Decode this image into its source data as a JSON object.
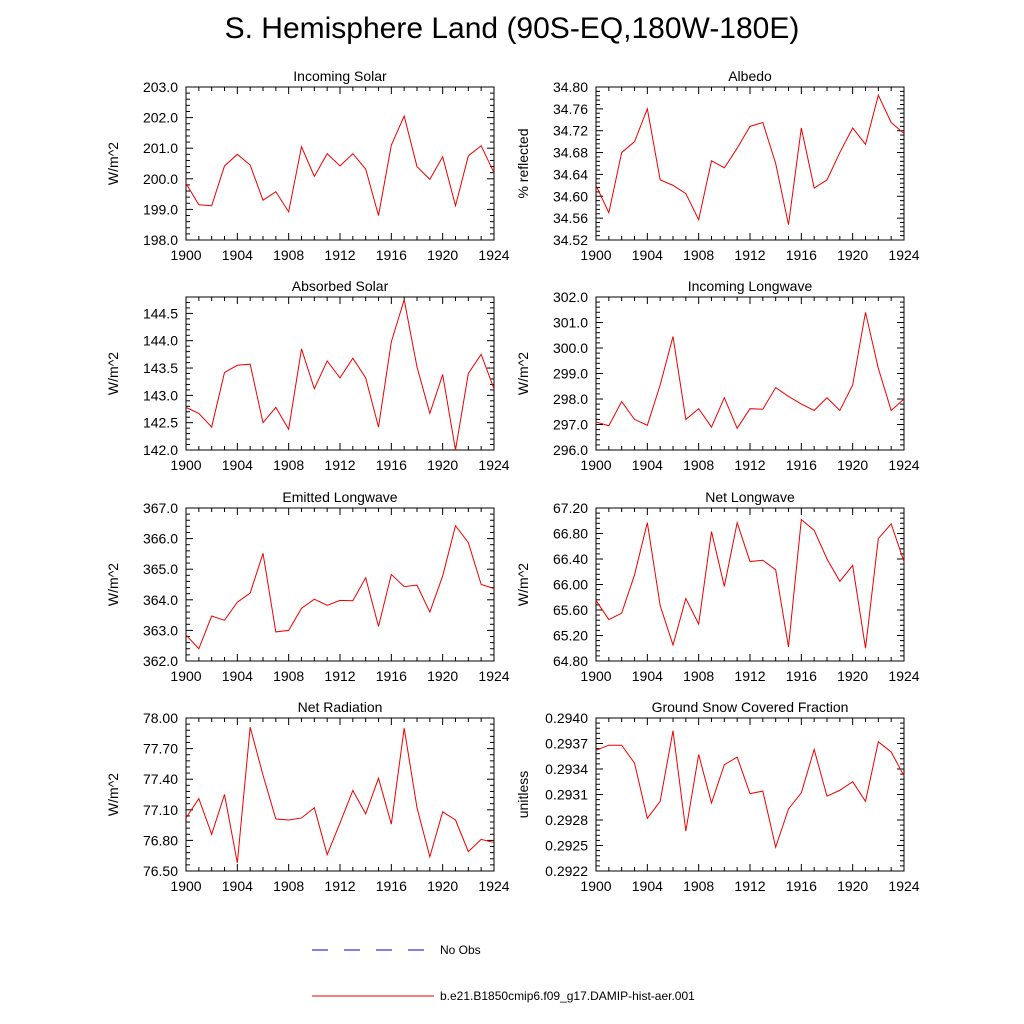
{
  "title": "S. Hemisphere Land (90S-EQ,180W-180E)",
  "legend": [
    {
      "label": "No Obs",
      "color": "#0000cc",
      "style": "dashed"
    },
    {
      "label": "b.e21.B1850cmip6.f09_g17.DAMIP-hist-aer.001",
      "color": "#ee0000",
      "style": "solid"
    }
  ],
  "chart_data": [
    {
      "type": "line",
      "title": "Incoming Solar",
      "ylabel": "W/m^2",
      "xlim": [
        1900,
        1924
      ],
      "ylim": [
        198.0,
        203.0
      ],
      "xticks": [
        "1900",
        "1904",
        "1908",
        "1912",
        "1916",
        "1920",
        "1924"
      ],
      "yticks": [
        "198.0",
        "199.0",
        "200.0",
        "201.0",
        "202.0",
        "203.0"
      ],
      "x": [
        1900,
        1901,
        1902,
        1903,
        1904,
        1905,
        1906,
        1907,
        1908,
        1909,
        1910,
        1911,
        1912,
        1913,
        1914,
        1915,
        1916,
        1917,
        1918,
        1919,
        1920,
        1921,
        1922,
        1923,
        1924
      ],
      "series": [
        {
          "color": "#ee0000",
          "values": [
            199.85,
            199.15,
            199.12,
            200.42,
            200.8,
            200.45,
            199.3,
            199.58,
            198.92,
            201.05,
            200.08,
            200.82,
            200.42,
            200.82,
            200.32,
            198.8,
            201.1,
            202.05,
            200.4,
            199.98,
            200.72,
            199.12,
            200.75,
            201.08,
            200.2
          ]
        }
      ]
    },
    {
      "type": "line",
      "title": "Albedo",
      "ylabel": "% reflected",
      "xlim": [
        1900,
        1924
      ],
      "ylim": [
        34.52,
        34.8
      ],
      "xticks": [
        "1900",
        "1904",
        "1908",
        "1912",
        "1916",
        "1920",
        "1924"
      ],
      "yticks": [
        "34.52",
        "34.56",
        "34.60",
        "34.64",
        "34.68",
        "34.72",
        "34.76",
        "34.80"
      ],
      "x": [
        1900,
        1901,
        1902,
        1903,
        1904,
        1905,
        1906,
        1907,
        1908,
        1909,
        1910,
        1911,
        1912,
        1913,
        1914,
        1915,
        1916,
        1917,
        1918,
        1919,
        1920,
        1921,
        1922,
        1923,
        1924
      ],
      "series": [
        {
          "color": "#ee0000",
          "values": [
            34.62,
            34.57,
            34.68,
            34.7,
            34.76,
            34.63,
            34.62,
            34.605,
            34.557,
            34.665,
            34.652,
            34.688,
            34.728,
            34.735,
            34.66,
            34.548,
            34.725,
            34.615,
            34.63,
            34.68,
            34.725,
            34.695,
            34.785,
            34.735,
            34.715
          ]
        }
      ]
    },
    {
      "type": "line",
      "title": "Absorbed Solar",
      "ylabel": "W/m^2",
      "xlim": [
        1900,
        1924
      ],
      "ylim": [
        142.0,
        144.8
      ],
      "xticks": [
        "1900",
        "1904",
        "1908",
        "1912",
        "1916",
        "1920",
        "1924"
      ],
      "yticks": [
        "142.0",
        "142.5",
        "143.0",
        "143.5",
        "144.0",
        "144.5"
      ],
      "x": [
        1900,
        1901,
        1902,
        1903,
        1904,
        1905,
        1906,
        1907,
        1908,
        1909,
        1910,
        1911,
        1912,
        1913,
        1914,
        1915,
        1916,
        1917,
        1918,
        1919,
        1920,
        1921,
        1922,
        1923,
        1924
      ],
      "series": [
        {
          "color": "#ee0000",
          "values": [
            142.78,
            142.67,
            142.42,
            143.42,
            143.55,
            143.57,
            142.5,
            142.78,
            142.38,
            143.85,
            143.12,
            143.63,
            143.32,
            143.68,
            143.32,
            142.42,
            143.98,
            144.75,
            143.52,
            142.67,
            143.38,
            142.0,
            143.4,
            143.75,
            143.12
          ]
        }
      ]
    },
    {
      "type": "line",
      "title": "Incoming Longwave",
      "ylabel": "W/m^2",
      "xlim": [
        1900,
        1924
      ],
      "ylim": [
        296.0,
        302.0
      ],
      "xticks": [
        "1900",
        "1904",
        "1908",
        "1912",
        "1916",
        "1920",
        "1924"
      ],
      "yticks": [
        "296.0",
        "297.0",
        "298.0",
        "299.0",
        "300.0",
        "301.0",
        "302.0"
      ],
      "x": [
        1900,
        1901,
        1902,
        1903,
        1904,
        1905,
        1906,
        1907,
        1908,
        1909,
        1910,
        1911,
        1912,
        1913,
        1914,
        1915,
        1916,
        1917,
        1918,
        1919,
        1920,
        1921,
        1922,
        1923,
        1924
      ],
      "series": [
        {
          "color": "#ee0000",
          "values": [
            297.1,
            296.95,
            297.9,
            297.2,
            296.97,
            298.55,
            300.45,
            297.2,
            297.62,
            296.9,
            298.05,
            296.85,
            297.62,
            297.6,
            298.45,
            298.1,
            297.8,
            297.55,
            298.05,
            297.55,
            298.55,
            301.4,
            299.2,
            297.55,
            298.0
          ]
        }
      ]
    },
    {
      "type": "line",
      "title": "Emitted Longwave",
      "ylabel": "W/m^2",
      "xlim": [
        1900,
        1924
      ],
      "ylim": [
        362.0,
        367.0
      ],
      "xticks": [
        "1900",
        "1904",
        "1908",
        "1912",
        "1916",
        "1920",
        "1924"
      ],
      "yticks": [
        "362.0",
        "363.0",
        "364.0",
        "365.0",
        "366.0",
        "367.0"
      ],
      "x": [
        1900,
        1901,
        1902,
        1903,
        1904,
        1905,
        1906,
        1907,
        1908,
        1909,
        1910,
        1911,
        1912,
        1913,
        1914,
        1915,
        1916,
        1917,
        1918,
        1919,
        1920,
        1921,
        1922,
        1923,
        1924
      ],
      "series": [
        {
          "color": "#ee0000",
          "values": [
            362.85,
            362.4,
            363.47,
            363.33,
            363.92,
            364.22,
            365.52,
            362.95,
            363.0,
            363.72,
            364.02,
            363.82,
            363.98,
            363.97,
            364.72,
            363.13,
            364.83,
            364.43,
            364.48,
            363.6,
            364.78,
            366.42,
            365.87,
            364.5,
            364.37
          ]
        }
      ]
    },
    {
      "type": "line",
      "title": "Net Longwave",
      "ylabel": "W/m^2",
      "xlim": [
        1900,
        1924
      ],
      "ylim": [
        64.8,
        67.2
      ],
      "xticks": [
        "1900",
        "1904",
        "1908",
        "1912",
        "1916",
        "1920",
        "1924"
      ],
      "yticks": [
        "64.80",
        "65.20",
        "65.60",
        "66.00",
        "66.40",
        "66.80",
        "67.20"
      ],
      "x": [
        1900,
        1901,
        1902,
        1903,
        1904,
        1905,
        1906,
        1907,
        1908,
        1909,
        1910,
        1911,
        1912,
        1913,
        1914,
        1915,
        1916,
        1917,
        1918,
        1919,
        1920,
        1921,
        1922,
        1923,
        1924
      ],
      "series": [
        {
          "color": "#ee0000",
          "values": [
            65.75,
            65.45,
            65.55,
            66.15,
            66.97,
            65.67,
            65.05,
            65.78,
            65.38,
            66.83,
            65.97,
            66.97,
            66.36,
            66.38,
            66.23,
            65.02,
            67.02,
            66.85,
            66.4,
            66.05,
            66.3,
            65.0,
            66.72,
            66.95,
            66.36
          ]
        }
      ]
    },
    {
      "type": "line",
      "title": "Net Radiation",
      "ylabel": "W/m^2",
      "xlim": [
        1900,
        1924
      ],
      "ylim": [
        76.5,
        78.0
      ],
      "xticks": [
        "1900",
        "1904",
        "1908",
        "1912",
        "1916",
        "1920",
        "1924"
      ],
      "yticks": [
        "76.50",
        "76.80",
        "77.10",
        "77.40",
        "77.70",
        "78.00"
      ],
      "x": [
        1900,
        1901,
        1902,
        1903,
        1904,
        1905,
        1906,
        1907,
        1908,
        1909,
        1910,
        1911,
        1912,
        1913,
        1914,
        1915,
        1916,
        1917,
        1918,
        1919,
        1920,
        1921,
        1922,
        1923,
        1924
      ],
      "series": [
        {
          "color": "#ee0000",
          "values": [
            77.02,
            77.21,
            76.86,
            77.25,
            76.58,
            77.91,
            77.44,
            77.01,
            77.0,
            77.02,
            77.12,
            76.66,
            76.97,
            77.29,
            77.06,
            77.41,
            76.96,
            77.9,
            77.12,
            76.64,
            77.08,
            77.0,
            76.69,
            76.81,
            76.78
          ]
        }
      ]
    },
    {
      "type": "line",
      "title": "Ground Snow Covered Fraction",
      "ylabel": "unitless",
      "xlim": [
        1900,
        1924
      ],
      "ylim": [
        0.2922,
        0.294
      ],
      "xticks": [
        "1900",
        "1904",
        "1908",
        "1912",
        "1916",
        "1920",
        "1924"
      ],
      "yticks": [
        "0.2922",
        "0.2925",
        "0.2928",
        "0.2931",
        "0.2934",
        "0.2937",
        "0.2940"
      ],
      "x": [
        1900,
        1901,
        1902,
        1903,
        1904,
        1905,
        1906,
        1907,
        1908,
        1909,
        1910,
        1911,
        1912,
        1913,
        1914,
        1915,
        1916,
        1917,
        1918,
        1919,
        1920,
        1921,
        1922,
        1923,
        1924
      ],
      "series": [
        {
          "color": "#ee0000",
          "values": [
            0.29362,
            0.29368,
            0.29368,
            0.29347,
            0.29282,
            0.29302,
            0.29385,
            0.29267,
            0.29357,
            0.293,
            0.29345,
            0.29354,
            0.29311,
            0.29314,
            0.29248,
            0.29293,
            0.29312,
            0.29363,
            0.29308,
            0.29315,
            0.29325,
            0.29302,
            0.29372,
            0.2936,
            0.29332
          ]
        }
      ]
    }
  ]
}
